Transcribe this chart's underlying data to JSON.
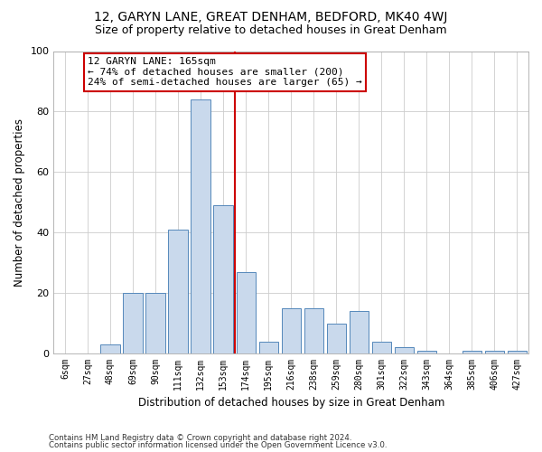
{
  "title": "12, GARYN LANE, GREAT DENHAM, BEDFORD, MK40 4WJ",
  "subtitle": "Size of property relative to detached houses in Great Denham",
  "xlabel": "Distribution of detached houses by size in Great Denham",
  "ylabel": "Number of detached properties",
  "bin_labels": [
    "6sqm",
    "27sqm",
    "48sqm",
    "69sqm",
    "90sqm",
    "111sqm",
    "132sqm",
    "153sqm",
    "174sqm",
    "195sqm",
    "216sqm",
    "238sqm",
    "259sqm",
    "280sqm",
    "301sqm",
    "322sqm",
    "343sqm",
    "364sqm",
    "385sqm",
    "406sqm",
    "427sqm"
  ],
  "bar_values": [
    0,
    0,
    3,
    20,
    20,
    41,
    84,
    49,
    27,
    4,
    15,
    15,
    10,
    14,
    4,
    2,
    1,
    0,
    1,
    1,
    1
  ],
  "bar_color": "#c9d9ec",
  "bar_edgecolor": "#5588bb",
  "vline_x": 8.0,
  "vline_color": "#cc0000",
  "annotation_text": "12 GARYN LANE: 165sqm\n← 74% of detached houses are smaller (200)\n24% of semi-detached houses are larger (65) →",
  "annotation_box_color": "#ffffff",
  "annotation_box_edgecolor": "#cc0000",
  "ylim": [
    0,
    100
  ],
  "yticks": [
    0,
    20,
    40,
    60,
    80,
    100
  ],
  "footer1": "Contains HM Land Registry data © Crown copyright and database right 2024.",
  "footer2": "Contains public sector information licensed under the Open Government Licence v3.0.",
  "bg_color": "#ffffff",
  "plot_bg_color": "#ffffff",
  "title_fontsize": 10,
  "subtitle_fontsize": 9,
  "annotation_fontsize": 8
}
